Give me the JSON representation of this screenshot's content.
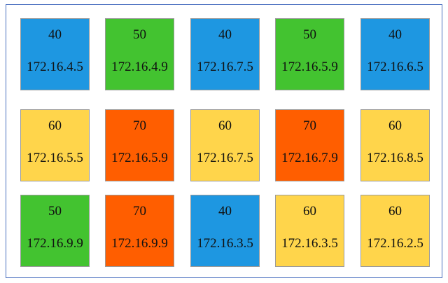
{
  "tiles": [
    {
      "value": 40,
      "address": "172.16.4.5",
      "color": "#1e97e1"
    },
    {
      "value": 50,
      "address": "172.16.4.9",
      "color": "#43c330"
    },
    {
      "value": 40,
      "address": "172.16.7.5",
      "color": "#1e97e1"
    },
    {
      "value": 50,
      "address": "172.16.5.9",
      "color": "#43c330"
    },
    {
      "value": 40,
      "address": "172.16.6.5",
      "color": "#1e97e1"
    },
    {
      "value": 60,
      "address": "172.16.5.5",
      "color": "#ffd54b"
    },
    {
      "value": 70,
      "address": "172.16.5.9",
      "color": "#ff5e00"
    },
    {
      "value": 60,
      "address": "172.16.7.5",
      "color": "#ffd54b"
    },
    {
      "value": 70,
      "address": "172.16.7.9",
      "color": "#ff5e00"
    },
    {
      "value": 60,
      "address": "172.16.8.5",
      "color": "#ffd54b"
    },
    {
      "value": 50,
      "address": "172.16.9.9",
      "color": "#43c330"
    },
    {
      "value": 70,
      "address": "172.16.9.9",
      "color": "#ff5e00"
    },
    {
      "value": 40,
      "address": "172.16.3.5",
      "color": "#1e97e1"
    },
    {
      "value": 60,
      "address": "172.16.3.5",
      "color": "#ffd54b"
    },
    {
      "value": 60,
      "address": "172.16.2.5",
      "color": "#ffd54b"
    }
  ]
}
